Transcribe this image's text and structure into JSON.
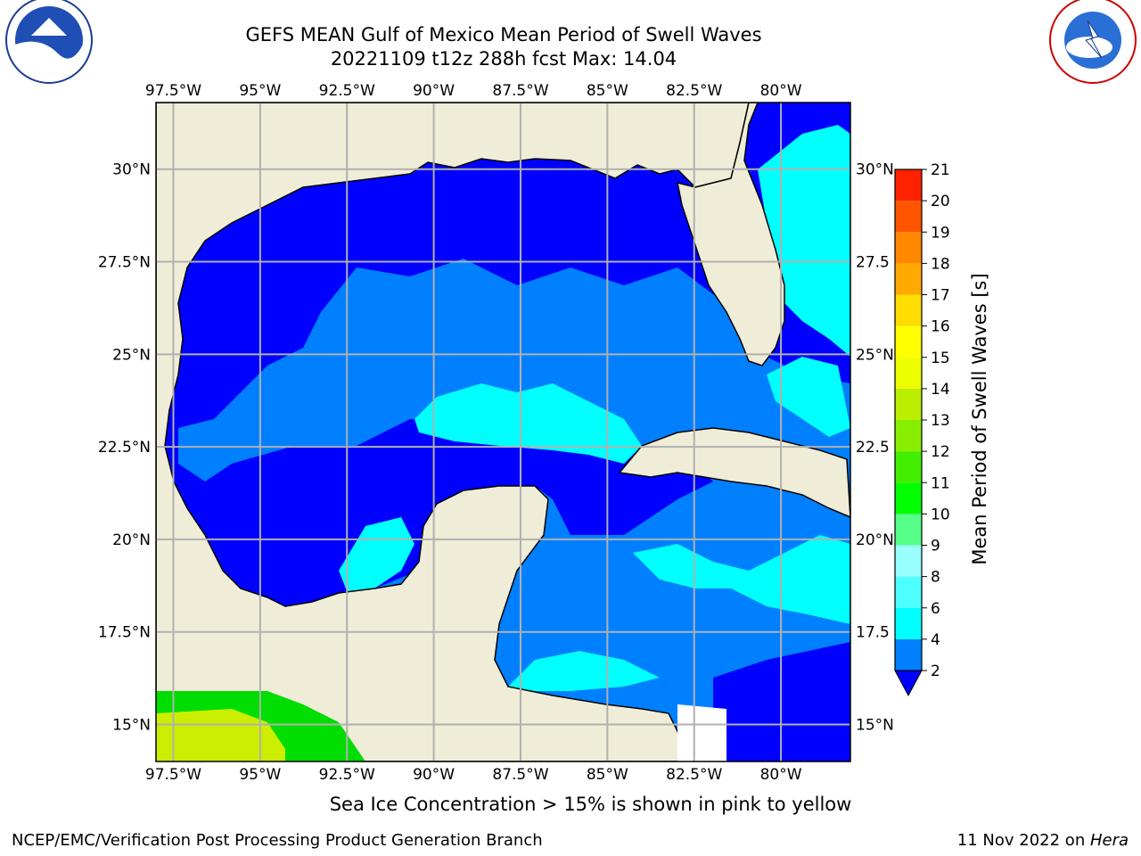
{
  "title_line1": "GEFS MEAN Gulf of Mexico Mean Period of Swell Waves",
  "title_line2": "20221109 t12z 288h fcst   Max: 14.04",
  "caption": "Sea Ice Concentration > 15% is shown in pink to yellow",
  "footer_left": "NCEP/EMC/Verification Post Processing Product Generation Branch",
  "footer_right_date": "11 Nov 2022 on ",
  "footer_right_host": "Hera",
  "logos": {
    "left": "noaa-logo",
    "right": "nws-logo"
  },
  "colors": {
    "land": "#efedd8",
    "water_2": "#0000ff",
    "water_2_4": "#0080ff",
    "water_4_6": "#00ffff",
    "grid": "#b0b0b0"
  },
  "chart_data": {
    "type": "heatmap",
    "extent": {
      "lon": [
        -98.0,
        -78.0
      ],
      "lat": [
        14.0,
        31.8
      ]
    },
    "lon_ticks": [
      {
        "value": -97.5,
        "label": "97.5°W"
      },
      {
        "value": -95.0,
        "label": "95°W"
      },
      {
        "value": -92.5,
        "label": "92.5°W"
      },
      {
        "value": -90.0,
        "label": "90°W"
      },
      {
        "value": -87.5,
        "label": "87.5°W"
      },
      {
        "value": -85.0,
        "label": "85°W"
      },
      {
        "value": -82.5,
        "label": "82.5°W"
      },
      {
        "value": -80.0,
        "label": "80°W"
      }
    ],
    "lat_ticks_left": [
      {
        "value": 30.0,
        "label": "30°N"
      },
      {
        "value": 27.5,
        "label": "27.5°N"
      },
      {
        "value": 25.0,
        "label": "25°N"
      },
      {
        "value": 22.5,
        "label": "22.5°N"
      },
      {
        "value": 20.0,
        "label": "20°N"
      },
      {
        "value": 17.5,
        "label": "17.5°N"
      },
      {
        "value": 15.0,
        "label": "15°N"
      }
    ],
    "lat_ticks_right": [
      {
        "value": 30.0,
        "label": "30°N"
      },
      {
        "value": 27.5,
        "label": "27.5"
      },
      {
        "value": 25.0,
        "label": "25°N"
      },
      {
        "value": 22.5,
        "label": "22.5"
      },
      {
        "value": 20.0,
        "label": "20°N"
      },
      {
        "value": 17.5,
        "label": "17.5"
      },
      {
        "value": 15.0,
        "label": "15°N"
      }
    ],
    "max_value": 14.04,
    "colorbar": {
      "label": "Mean Period of Swell Waves [s]",
      "extend": "min",
      "levels": [
        2,
        4,
        6,
        8,
        9,
        10,
        11,
        12,
        13,
        14,
        15,
        16,
        17,
        18,
        19,
        20,
        21
      ],
      "colors": [
        "#0080ff",
        "#00ffff",
        "#4dffff",
        "#99ffff",
        "#55ff88",
        "#00ff00",
        "#44ee00",
        "#88ee00",
        "#bbee00",
        "#eeff00",
        "#ffff00",
        "#ffdd00",
        "#ffaa00",
        "#ff8800",
        "#ff5500",
        "#ff2200"
      ],
      "extend_color": "#0000ff",
      "tick_labels": [
        "2",
        "4",
        "6",
        "8",
        "9",
        "10",
        "11",
        "12",
        "13",
        "14",
        "15",
        "16",
        "17",
        "18",
        "19",
        "20",
        "21"
      ]
    }
  }
}
